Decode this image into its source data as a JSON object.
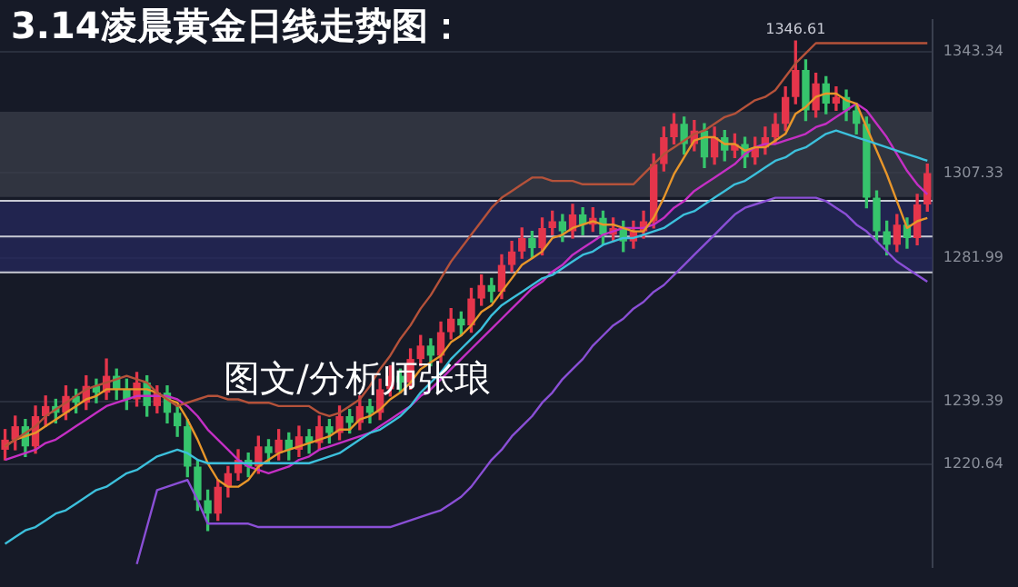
{
  "chart_data": {
    "type": "candlestick",
    "title": "3.14凌晨黄金日线走势图：",
    "categories": [
      null,
      null,
      null,
      null,
      null,
      null,
      null,
      null,
      null,
      null,
      null,
      null,
      null,
      null,
      null,
      null,
      null,
      null,
      null,
      null,
      null,
      null,
      null,
      null,
      null,
      null,
      null,
      null,
      null,
      null,
      null,
      null,
      null,
      null,
      null,
      null,
      null,
      null,
      null,
      null,
      null,
      null,
      null,
      null,
      null,
      null,
      null,
      null,
      null,
      null,
      null,
      null,
      null,
      null,
      null,
      null,
      null,
      null,
      null,
      null,
      null,
      null,
      null,
      null,
      null,
      null,
      null,
      null,
      null,
      null,
      null,
      null,
      null,
      null,
      null,
      null,
      null,
      null,
      null,
      null,
      null,
      null,
      null,
      null,
      null,
      null,
      null,
      null,
      null,
      null,
      null,
      null
    ],
    "ohlc": [
      [
        1225,
        1231,
        1222,
        1228
      ],
      [
        1228,
        1235,
        1225,
        1232
      ],
      [
        1232,
        1234,
        1223,
        1226
      ],
      [
        1226,
        1238,
        1224,
        1235
      ],
      [
        1235,
        1241,
        1232,
        1238
      ],
      [
        1238,
        1240,
        1233,
        1236
      ],
      [
        1236,
        1244,
        1234,
        1241
      ],
      [
        1241,
        1243,
        1236,
        1239
      ],
      [
        1239,
        1247,
        1237,
        1244
      ],
      [
        1244,
        1246,
        1239,
        1242
      ],
      [
        1242,
        1252,
        1240,
        1247
      ],
      [
        1247,
        1249,
        1240,
        1243
      ],
      [
        1243,
        1246,
        1237,
        1240
      ],
      [
        1240,
        1248,
        1238,
        1245
      ],
      [
        1245,
        1247,
        1235,
        1238
      ],
      [
        1238,
        1244,
        1236,
        1242
      ],
      [
        1242,
        1244,
        1233,
        1236
      ],
      [
        1236,
        1238,
        1229,
        1232
      ],
      [
        1232,
        1234,
        1217,
        1220
      ],
      [
        1220,
        1222,
        1207,
        1210
      ],
      [
        1210,
        1213,
        1201,
        1206
      ],
      [
        1206,
        1216,
        1204,
        1214
      ],
      [
        1214,
        1220,
        1211,
        1218
      ],
      [
        1218,
        1225,
        1216,
        1222
      ],
      [
        1222,
        1224,
        1217,
        1220
      ],
      [
        1220,
        1229,
        1218,
        1226
      ],
      [
        1226,
        1228,
        1221,
        1224
      ],
      [
        1224,
        1231,
        1222,
        1228
      ],
      [
        1228,
        1230,
        1222,
        1225
      ],
      [
        1225,
        1232,
        1223,
        1229
      ],
      [
        1229,
        1231,
        1224,
        1227
      ],
      [
        1227,
        1235,
        1225,
        1232
      ],
      [
        1232,
        1234,
        1227,
        1230
      ],
      [
        1230,
        1238,
        1228,
        1235
      ],
      [
        1235,
        1237,
        1230,
        1233
      ],
      [
        1233,
        1241,
        1231,
        1238
      ],
      [
        1238,
        1240,
        1233,
        1236
      ],
      [
        1236,
        1246,
        1234,
        1243
      ],
      [
        1243,
        1250,
        1241,
        1247
      ],
      [
        1247,
        1249,
        1242,
        1245
      ],
      [
        1245,
        1255,
        1243,
        1252
      ],
      [
        1252,
        1259,
        1250,
        1256
      ],
      [
        1256,
        1258,
        1250,
        1253
      ],
      [
        1253,
        1263,
        1251,
        1260
      ],
      [
        1260,
        1267,
        1258,
        1264
      ],
      [
        1264,
        1266,
        1259,
        1262
      ],
      [
        1262,
        1273,
        1260,
        1270
      ],
      [
        1270,
        1277,
        1268,
        1274
      ],
      [
        1274,
        1276,
        1269,
        1272
      ],
      [
        1272,
        1283,
        1270,
        1280
      ],
      [
        1280,
        1287,
        1278,
        1284
      ],
      [
        1284,
        1291,
        1282,
        1288
      ],
      [
        1288,
        1290,
        1282,
        1285
      ],
      [
        1285,
        1294,
        1283,
        1291
      ],
      [
        1291,
        1296,
        1289,
        1293
      ],
      [
        1293,
        1295,
        1287,
        1290
      ],
      [
        1290,
        1298,
        1288,
        1295
      ],
      [
        1295,
        1297,
        1289,
        1292
      ],
      [
        1292,
        1297,
        1290,
        1294
      ],
      [
        1294,
        1296,
        1286,
        1289
      ],
      [
        1289,
        1294,
        1287,
        1291
      ],
      [
        1291,
        1293,
        1284,
        1287
      ],
      [
        1287,
        1293,
        1285,
        1290
      ],
      [
        1290,
        1296,
        1288,
        1293
      ],
      [
        1293,
        1313,
        1291,
        1310
      ],
      [
        1310,
        1321,
        1308,
        1318
      ],
      [
        1318,
        1325,
        1316,
        1322
      ],
      [
        1322,
        1324,
        1313,
        1316
      ],
      [
        1316,
        1323,
        1314,
        1320
      ],
      [
        1320,
        1322,
        1309,
        1312
      ],
      [
        1312,
        1321,
        1310,
        1318
      ],
      [
        1318,
        1320,
        1311,
        1314
      ],
      [
        1314,
        1319,
        1312,
        1316
      ],
      [
        1316,
        1318,
        1309,
        1312
      ],
      [
        1312,
        1318,
        1310,
        1315
      ],
      [
        1315,
        1321,
        1313,
        1318
      ],
      [
        1318,
        1325,
        1316,
        1322
      ],
      [
        1322,
        1333,
        1320,
        1330
      ],
      [
        1330,
        1346.61,
        1328,
        1338
      ],
      [
        1338,
        1341,
        1323,
        1326
      ],
      [
        1326,
        1337,
        1324,
        1334
      ],
      [
        1334,
        1336,
        1325,
        1328
      ],
      [
        1328,
        1333,
        1326,
        1330
      ],
      [
        1330,
        1332,
        1323,
        1326
      ],
      [
        1326,
        1328,
        1319,
        1322
      ],
      [
        1322,
        1324,
        1297,
        1300
      ],
      [
        1300,
        1302,
        1287,
        1290
      ],
      [
        1290,
        1293,
        1283,
        1286
      ],
      [
        1286,
        1295,
        1284,
        1292
      ],
      [
        1292,
        1294,
        1285,
        1288
      ],
      [
        1288,
        1301,
        1286,
        1298
      ],
      [
        1298,
        1310,
        1296,
        1307.33
      ]
    ],
    "series": [
      {
        "type": "line",
        "color": "#b5523a",
        "values": [
          1226,
          1228,
          1230,
          1232,
          1235,
          1237,
          1239,
          1241,
          1243,
          1244,
          1245,
          1246,
          1247,
          1246,
          1245,
          1242,
          1240,
          1238,
          1239,
          1240,
          1241,
          1241,
          1240,
          1240,
          1239,
          1239,
          1239,
          1238,
          1238,
          1238,
          1238,
          1236,
          1235,
          1236,
          1238,
          1240,
          1244,
          1249,
          1253,
          1258,
          1262,
          1267,
          1271,
          1276,
          1281,
          1285,
          1289,
          1293,
          1297,
          1300,
          1302,
          1304,
          1306,
          1306,
          1305,
          1305,
          1305,
          1304,
          1304,
          1304,
          1304,
          1304,
          1304,
          1307,
          1310,
          1313,
          1315,
          1317,
          1319,
          1320,
          1322,
          1324,
          1325,
          1327,
          1329,
          1330,
          1332,
          1336,
          1340,
          1343,
          1346,
          1346,
          1346,
          1346,
          1346,
          1346,
          1346,
          1346,
          1346,
          1346,
          1346,
          1346
        ]
      },
      {
        "type": "line",
        "color": "#3cc0dc",
        "values": [
          1197,
          1199,
          1201,
          1202,
          1204,
          1206,
          1207,
          1209,
          1211,
          1213,
          1214,
          1216,
          1218,
          1219,
          1221,
          1223,
          1224,
          1225,
          1224,
          1222,
          1221,
          1221,
          1221,
          1221,
          1221,
          1221,
          1221,
          1221,
          1221,
          1221,
          1221,
          1222,
          1223,
          1224,
          1226,
          1228,
          1230,
          1231,
          1233,
          1235,
          1238,
          1242,
          1245,
          1248,
          1252,
          1255,
          1258,
          1261,
          1265,
          1268,
          1270,
          1272,
          1274,
          1276,
          1277,
          1279,
          1281,
          1283,
          1284,
          1286,
          1287,
          1288,
          1288,
          1289,
          1290,
          1291,
          1293,
          1295,
          1296,
          1298,
          1300,
          1302,
          1304,
          1305,
          1307,
          1309,
          1311,
          1312,
          1314,
          1315,
          1317,
          1319,
          1320,
          1319,
          1318,
          1317,
          1316,
          1315,
          1314,
          1313,
          1312,
          1311
        ]
      },
      {
        "type": "line",
        "color": "#8a4fd6",
        "values": [
          null,
          null,
          null,
          null,
          null,
          null,
          null,
          null,
          null,
          null,
          null,
          null,
          null,
          1191,
          1202,
          1213,
          1214,
          1215,
          1216,
          1210,
          1203,
          1203,
          1203,
          1203,
          1203,
          1202,
          1202,
          1202,
          1202,
          1202,
          1202,
          1202,
          1202,
          1202,
          1202,
          1202,
          1202,
          1202,
          1202,
          1203,
          1204,
          1205,
          1206,
          1207,
          1209,
          1211,
          1214,
          1218,
          1222,
          1225,
          1229,
          1232,
          1235,
          1239,
          1242,
          1246,
          1249,
          1252,
          1256,
          1259,
          1262,
          1264,
          1267,
          1269,
          1272,
          1274,
          1277,
          1280,
          1283,
          1286,
          1289,
          1292,
          1295,
          1297,
          1298,
          1299,
          1300,
          1300,
          1300,
          1300,
          1300,
          1299,
          1297,
          1295,
          1292,
          1290,
          1287,
          1284,
          1281,
          1279,
          1277,
          1275
        ]
      },
      {
        "type": "line",
        "color": "#e8962a",
        "values": [
          1226,
          1228,
          1229,
          1230,
          1232,
          1234,
          1236,
          1238,
          1240,
          1241,
          1243,
          1243,
          1243,
          1243,
          1243,
          1242,
          1240,
          1239,
          1234,
          1228,
          1221,
          1216,
          1214,
          1214,
          1216,
          1220,
          1222,
          1224,
          1225,
          1226,
          1227,
          1228,
          1229,
          1231,
          1231,
          1234,
          1235,
          1237,
          1240,
          1242,
          1245,
          1249,
          1251,
          1253,
          1257,
          1259,
          1262,
          1266,
          1268,
          1272,
          1276,
          1280,
          1282,
          1284,
          1288,
          1289,
          1291,
          1292,
          1293,
          1292,
          1292,
          1291,
          1290,
          1290,
          1294,
          1300,
          1307,
          1312,
          1317,
          1318,
          1318,
          1316,
          1316,
          1314,
          1315,
          1315,
          1317,
          1319,
          1325,
          1327,
          1330,
          1331,
          1331,
          1329,
          1328,
          1321,
          1314,
          1307,
          1299,
          1291,
          1293,
          1294
        ]
      },
      {
        "type": "line",
        "color": "#c42fc4",
        "values": [
          1222,
          1223,
          1224,
          1225,
          1227,
          1228,
          1230,
          1232,
          1234,
          1236,
          1238,
          1239,
          1240,
          1241,
          1241,
          1241,
          1241,
          1240,
          1238,
          1235,
          1231,
          1228,
          1225,
          1222,
          1220,
          1219,
          1218,
          1219,
          1220,
          1222,
          1223,
          1225,
          1226,
          1227,
          1228,
          1229,
          1230,
          1232,
          1234,
          1236,
          1238,
          1241,
          1243,
          1246,
          1249,
          1252,
          1255,
          1258,
          1261,
          1264,
          1267,
          1270,
          1273,
          1275,
          1278,
          1280,
          1283,
          1285,
          1287,
          1289,
          1290,
          1291,
          1291,
          1291,
          1292,
          1294,
          1297,
          1299,
          1302,
          1304,
          1306,
          1308,
          1310,
          1313,
          1315,
          1316,
          1316,
          1317,
          1318,
          1319,
          1321,
          1322,
          1324,
          1326,
          1328,
          1326,
          1322,
          1318,
          1313,
          1308,
          1304,
          1301
        ]
      }
    ],
    "ylim": [
      1190,
      1353
    ],
    "yticks": [
      1220.64,
      1239.39,
      1281.99,
      1307.33,
      1343.34
    ],
    "grid": "y",
    "tick_labels": "y",
    "legend": false,
    "marker": "none",
    "bands": [
      {
        "axis": "y",
        "from": 1300.2,
        "to": 1325.6,
        "color": "#3a3e4a"
      },
      {
        "axis": "y",
        "from": 1277.8,
        "to": 1299.1,
        "color": "#25285e"
      }
    ],
    "ref_lines": [
      {
        "axis": "y",
        "value": 1299.1,
        "color": "#c8cad4"
      },
      {
        "axis": "y",
        "value": 1288.5,
        "color": "#c8cad4"
      },
      {
        "axis": "y",
        "value": 1277.8,
        "color": "#c8cad4"
      }
    ],
    "annotations": [
      {
        "text": "1346.61",
        "y": 1346.61
      },
      "图文/分析师张琅"
    ]
  }
}
